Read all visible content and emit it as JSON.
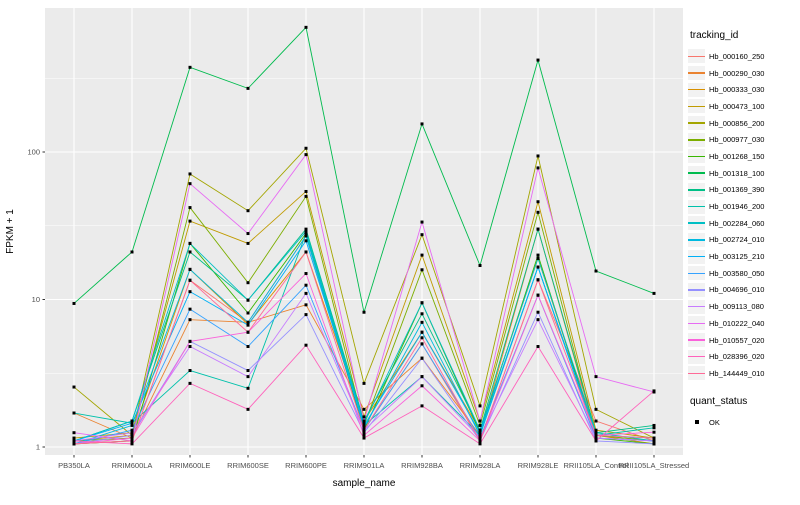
{
  "figure": {
    "panel_bg": "#EBEBEB",
    "grid_color": "#FFFFFF",
    "tick_text_color": "#4D4D4D",
    "axis_title_color": "#000000",
    "marker_color": "#000000",
    "legend_key_bg": "#F2F2F2"
  },
  "chart_data": {
    "type": "line",
    "title": "",
    "xlabel": "sample_name",
    "ylabel": "FPKM + 1",
    "y_scale": "log10",
    "y_ticks": [
      1,
      10,
      100
    ],
    "y_minor_ticks": [
      3.162,
      31.62,
      316.2
    ],
    "ylim": [
      0.88,
      950
    ],
    "grid": true,
    "legend_position": "right",
    "legend_title": "tracking_id",
    "quant_legend_title": "quant_status",
    "quant_status_label": "OK",
    "categories": [
      "PB350LA",
      "RRIM600LA",
      "RRIM600LE",
      "RRIM600SE",
      "RRIM600PE",
      "RRIM901LA",
      "RRIM928BA",
      "RRIM928LA",
      "RRIM928LE",
      "RRII105LA_Control",
      "RRII105LA_Stressed"
    ],
    "series": [
      {
        "name": "Hb_000160_250",
        "color": "#F8766D",
        "values": [
          1.05,
          1.1,
          13.5,
          7.0,
          27,
          1.3,
          5.0,
          1.1,
          13.6,
          1.5,
          1.1
        ]
      },
      {
        "name": "Hb_000290_030",
        "color": "#EA8331",
        "values": [
          1.7,
          1.15,
          7.3,
          7.0,
          9.2,
          1.8,
          4.0,
          1.2,
          30,
          1.2,
          1.1
        ]
      },
      {
        "name": "Hb_000333_030",
        "color": "#D89000",
        "values": [
          1.1,
          1.2,
          16,
          6.8,
          21,
          1.5,
          6.0,
          1.3,
          19,
          1.2,
          1.05
        ]
      },
      {
        "name": "Hb_000473_100",
        "color": "#C09B00",
        "values": [
          1.15,
          1.25,
          34,
          24,
          54,
          1.6,
          20,
          1.5,
          46,
          1.3,
          1.15
        ]
      },
      {
        "name": "Hb_000856_200",
        "color": "#A3A500",
        "values": [
          2.55,
          1.2,
          71,
          40,
          106,
          2.7,
          27.5,
          1.9,
          94,
          1.8,
          1.15
        ]
      },
      {
        "name": "Hb_000977_030",
        "color": "#7CAE00",
        "values": [
          1.1,
          1.15,
          42,
          13,
          50,
          1.4,
          15.9,
          1.4,
          39,
          1.2,
          1.1
        ]
      },
      {
        "name": "Hb_001268_150",
        "color": "#39B600",
        "values": [
          1.05,
          1.1,
          24,
          8.1,
          28,
          1.3,
          9.5,
          1.25,
          20,
          1.15,
          1.05
        ]
      },
      {
        "name": "Hb_001318_100",
        "color": "#00BB4E",
        "values": [
          9.4,
          21,
          375,
          270,
          700,
          8.2,
          155,
          17,
          420,
          15.6,
          11
        ]
      },
      {
        "name": "Hb_001369_390",
        "color": "#00C087",
        "values": [
          1.1,
          1.5,
          21,
          9.9,
          30,
          1.5,
          8.0,
          1.3,
          30,
          1.25,
          1.4
        ]
      },
      {
        "name": "Hb_001946_200",
        "color": "#00C1AB",
        "values": [
          1.7,
          1.45,
          3.3,
          2.5,
          28,
          1.4,
          3.0,
          1.2,
          16.6,
          1.2,
          1.35
        ]
      },
      {
        "name": "Hb_002284_060",
        "color": "#00BFC4",
        "values": [
          1.1,
          1.5,
          24,
          9.9,
          29,
          1.45,
          9.5,
          1.3,
          19,
          1.25,
          1.1
        ]
      },
      {
        "name": "Hb_002724_010",
        "color": "#00BAE0",
        "values": [
          1.05,
          1.4,
          16,
          7.0,
          27,
          1.35,
          7.0,
          1.2,
          16.6,
          1.15,
          1.1
        ]
      },
      {
        "name": "Hb_003125_210",
        "color": "#00B0F6",
        "values": [
          1.1,
          1.45,
          11.3,
          6.7,
          25,
          1.4,
          6.0,
          1.25,
          16.6,
          1.2,
          1.15
        ]
      },
      {
        "name": "Hb_003580_050",
        "color": "#35A2FF",
        "values": [
          1.05,
          1.3,
          8.6,
          4.8,
          12.5,
          1.3,
          5.0,
          1.15,
          10.7,
          1.15,
          1.1
        ]
      },
      {
        "name": "Hb_004696_010",
        "color": "#9590FF",
        "values": [
          1.05,
          1.2,
          5.2,
          3.3,
          7.9,
          1.25,
          4.0,
          1.1,
          8.2,
          1.1,
          1.05
        ]
      },
      {
        "name": "Hb_009113_080",
        "color": "#C77CFF",
        "values": [
          1.1,
          1.25,
          4.8,
          3.0,
          11,
          1.3,
          3.0,
          1.15,
          7.3,
          1.15,
          1.1
        ]
      },
      {
        "name": "Hb_010222_040",
        "color": "#E76BF3",
        "values": [
          1.25,
          1.1,
          61,
          28,
          96,
          1.5,
          33.5,
          1.5,
          78,
          3.0,
          2.36
        ]
      },
      {
        "name": "Hb_010557_020",
        "color": "#FA62DB",
        "values": [
          1.05,
          1.15,
          5.2,
          6.0,
          15,
          1.2,
          2.6,
          1.1,
          10.7,
          1.2,
          1.26
        ]
      },
      {
        "name": "Hb_028396_020",
        "color": "#FF62BC",
        "values": [
          1.1,
          1.05,
          2.7,
          1.8,
          4.9,
          1.15,
          1.9,
          1.05,
          4.8,
          1.1,
          2.4
        ]
      },
      {
        "name": "Hb_144449_010",
        "color": "#FF6A98",
        "values": [
          1.05,
          1.1,
          13.5,
          6.0,
          21,
          1.3,
          5.5,
          1.1,
          13.6,
          1.2,
          1.15
        ]
      }
    ]
  }
}
